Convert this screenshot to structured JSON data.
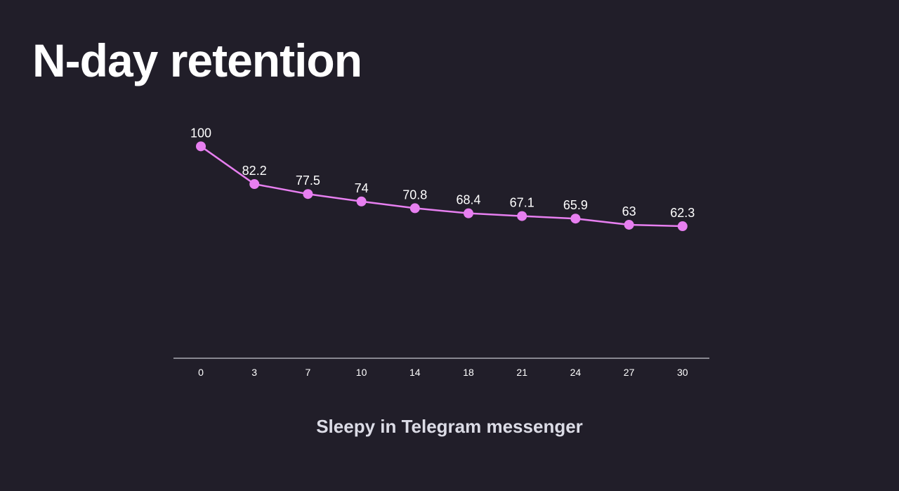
{
  "page": {
    "title": "N-day retention",
    "background_color": "#211e29"
  },
  "chart_data": {
    "type": "line",
    "title": "Sleepy in Telegram messenger",
    "xlabel": "",
    "ylabel": "",
    "x": [
      "0",
      "3",
      "7",
      "10",
      "14",
      "18",
      "21",
      "24",
      "27",
      "30"
    ],
    "series": [
      {
        "values": [
          100,
          82.2,
          77.5,
          74,
          70.8,
          68.4,
          67.1,
          65.9,
          63,
          62.3
        ],
        "color": "#e77ff0"
      }
    ],
    "ylim": [
      0,
      120
    ],
    "grid": false,
    "legend": "none",
    "data_labels": true,
    "axis_color": "#c8c8d0"
  }
}
